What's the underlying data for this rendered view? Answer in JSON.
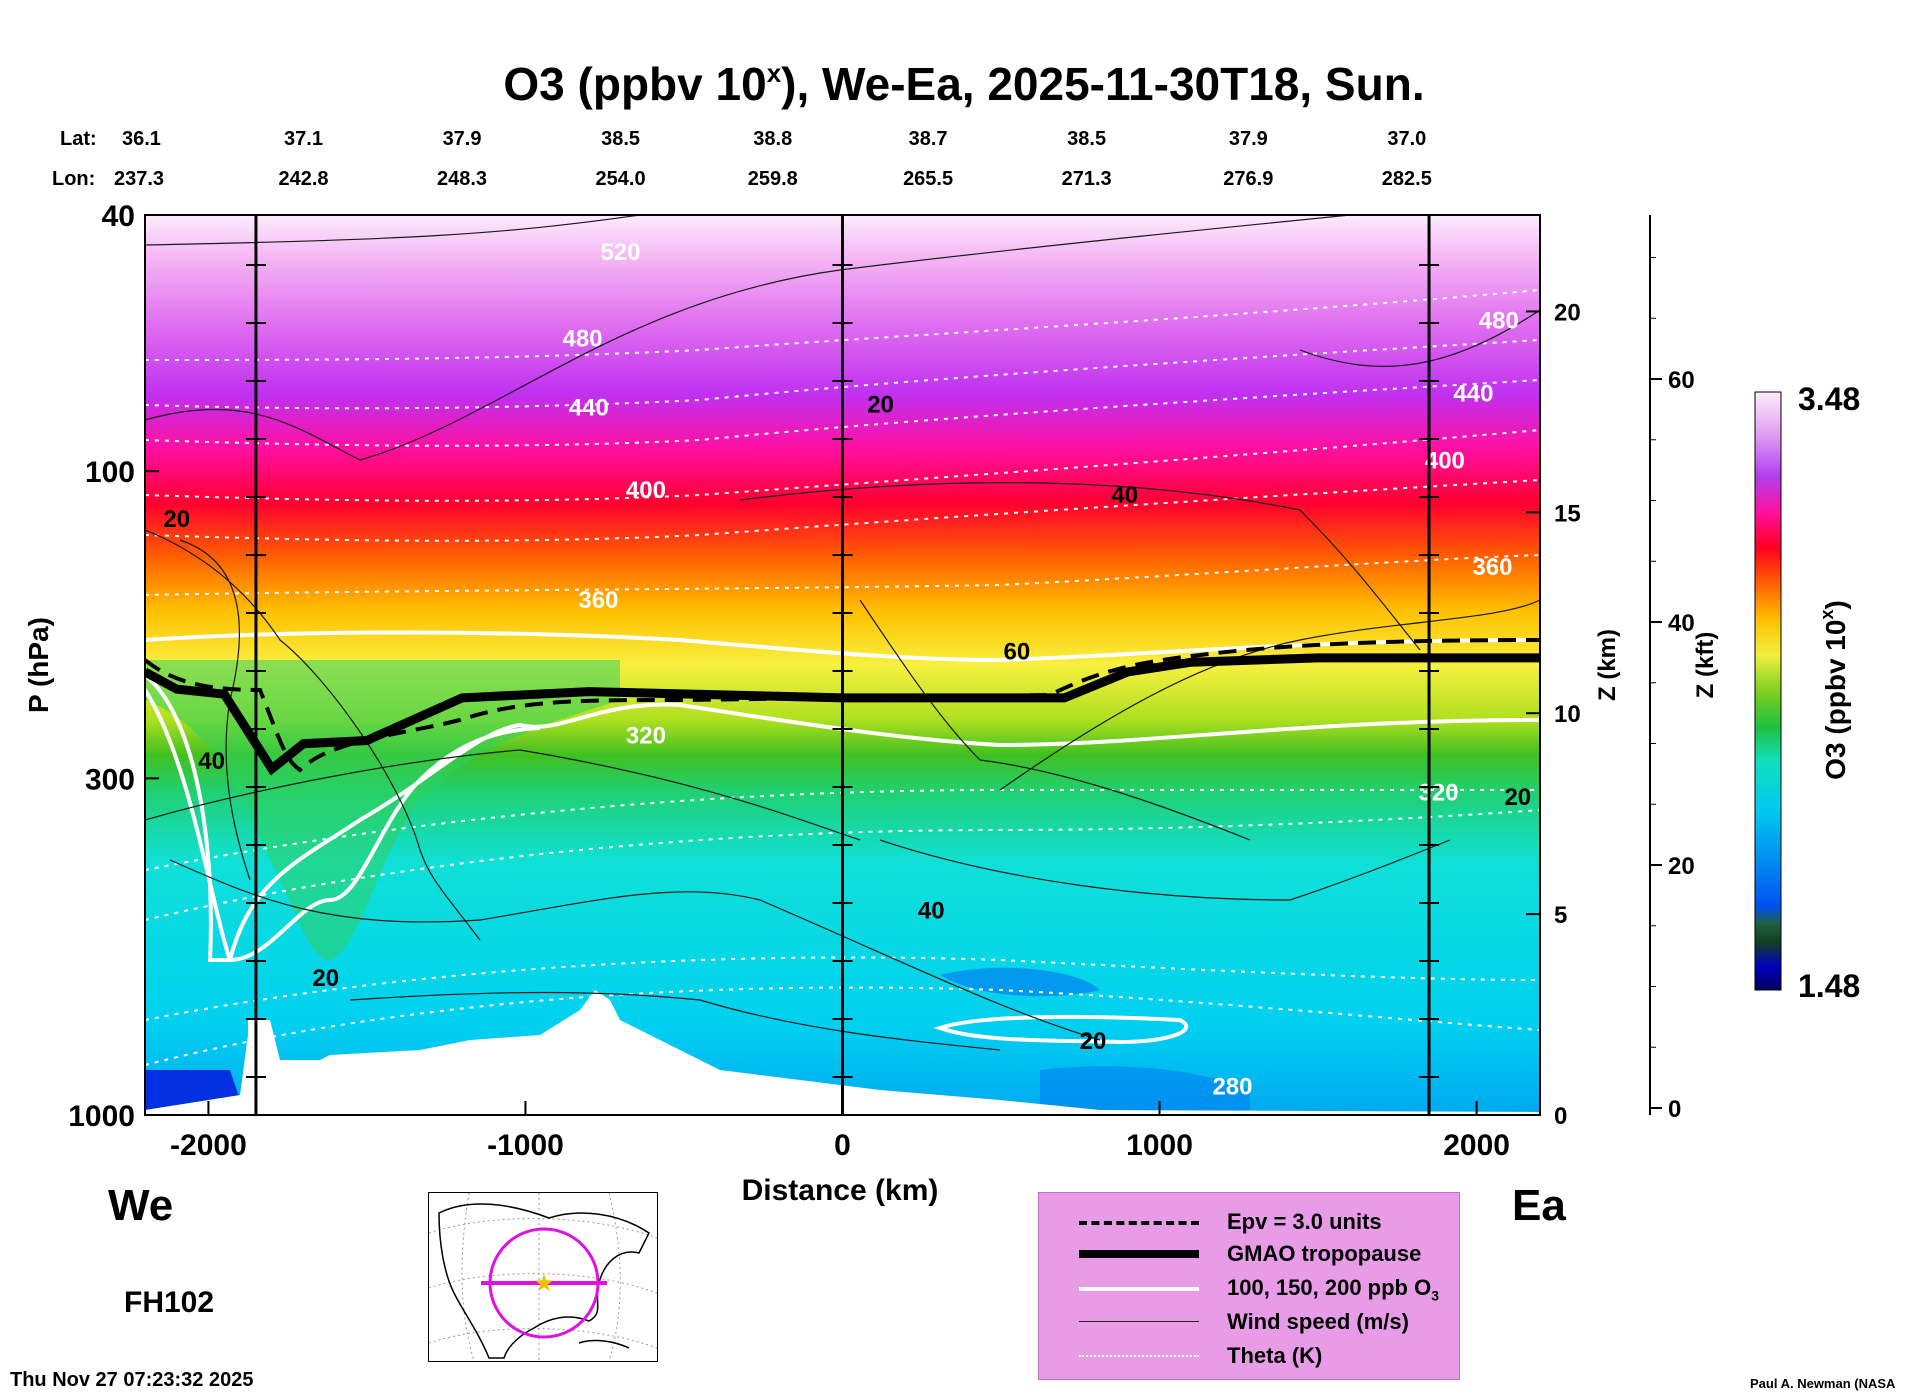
{
  "chart_data": {
    "type": "heatmap",
    "title": "O3 (ppbv 10",
    "title_superscript": "x",
    "title_suffix": "), We-Ea, 2025-11-30T18, Sun.",
    "xlabel": "Distance (km)",
    "ylabel": "P (hPa)",
    "xlim": [
      -2200,
      2200
    ],
    "ylim_hpa": [
      1000,
      40
    ],
    "x_ticks": [
      "-2000",
      "-1000",
      "0",
      "1000",
      "2000"
    ],
    "x_tick_values": [
      -2000,
      -1000,
      0,
      1000,
      2000
    ],
    "y_ticks": [
      "40",
      "100",
      "300",
      "1000"
    ],
    "y_tick_values": [
      40,
      100,
      300,
      1000
    ],
    "z_km_label": "Z (km)",
    "z_km_ticks": [
      "0",
      "5",
      "10",
      "15",
      "20"
    ],
    "z_km_values": [
      0,
      5,
      10,
      15,
      20
    ],
    "z_kft_label": "Z (kft)",
    "z_kft_ticks": [
      "0",
      "20",
      "40",
      "60"
    ],
    "z_kft_values": [
      0,
      20,
      40,
      60
    ],
    "lat_label": "Lat:",
    "lon_label": "Lon:",
    "stations": [
      {
        "lat": "36.1",
        "lon": "237.3",
        "x": -2200
      },
      {
        "lat": "37.1",
        "lon": "242.8",
        "x": -1700
      },
      {
        "lat": "37.9",
        "lon": "248.3",
        "x": -1200
      },
      {
        "lat": "38.5",
        "lon": "254.0",
        "x": -700
      },
      {
        "lat": "38.8",
        "lon": "259.8",
        "x": -220
      },
      {
        "lat": "38.7",
        "lon": "265.5",
        "x": 270
      },
      {
        "lat": "38.5",
        "lon": "271.3",
        "x": 770
      },
      {
        "lat": "37.9",
        "lon": "276.9",
        "x": 1280
      },
      {
        "lat": "37.0",
        "lon": "282.5",
        "x": 1780
      }
    ],
    "vertical_lines_x": [
      -1850,
      0,
      1850
    ],
    "colorbar": {
      "label": "O3 (ppbv 10",
      "label_sup": "x",
      "label_end": ")",
      "max": "3.48",
      "min": "1.48"
    },
    "tropopause_hpa": [
      {
        "x": -2200,
        "p": 205
      },
      {
        "x": -2100,
        "p": 218
      },
      {
        "x": -1950,
        "p": 222
      },
      {
        "x": -1800,
        "p": 290
      },
      {
        "x": -1700,
        "p": 265
      },
      {
        "x": -1500,
        "p": 262
      },
      {
        "x": -1200,
        "p": 225
      },
      {
        "x": -800,
        "p": 220
      },
      {
        "x": 0,
        "p": 225
      },
      {
        "x": 700,
        "p": 225
      },
      {
        "x": 900,
        "p": 205
      },
      {
        "x": 1100,
        "p": 198
      },
      {
        "x": 1500,
        "p": 195
      },
      {
        "x": 2200,
        "p": 195
      }
    ],
    "theta_labels": [
      {
        "text": "520",
        "x": -700,
        "p": 47
      },
      {
        "text": "480",
        "x": -820,
        "p": 64
      },
      {
        "text": "440",
        "x": -800,
        "p": 82
      },
      {
        "text": "400",
        "x": -620,
        "p": 110
      },
      {
        "text": "360",
        "x": -770,
        "p": 163
      },
      {
        "text": "320",
        "x": -620,
        "p": 265
      },
      {
        "text": "480",
        "x": 2070,
        "p": 60
      },
      {
        "text": "440",
        "x": 1990,
        "p": 78
      },
      {
        "text": "400",
        "x": 1900,
        "p": 99
      },
      {
        "text": "360",
        "x": 2050,
        "p": 145
      },
      {
        "text": "320",
        "x": 1880,
        "p": 325
      },
      {
        "text": "280",
        "x": 1230,
        "p": 930
      }
    ],
    "wind_labels": [
      {
        "text": "20",
        "x": -2100,
        "p": 122
      },
      {
        "text": "40",
        "x": -1990,
        "p": 290
      },
      {
        "text": "20",
        "x": 120,
        "p": 81
      },
      {
        "text": "40",
        "x": 890,
        "p": 112
      },
      {
        "text": "60",
        "x": 550,
        "p": 196
      },
      {
        "text": "40",
        "x": 280,
        "p": 495
      },
      {
        "text": "20",
        "x": -1630,
        "p": 630
      },
      {
        "text": "20",
        "x": 790,
        "p": 790
      },
      {
        "text": "20",
        "x": 2130,
        "p": 330
      }
    ]
  },
  "labels": {
    "west": "We",
    "east": "Ea",
    "forecast_hour": "FH102",
    "timestamp": "Thu Nov 27 07:23:32 2025",
    "credit": "Paul A. Newman (NASA"
  },
  "legend": [
    {
      "label": "Epv = 3.0 units",
      "style": "dashed"
    },
    {
      "label": "GMAO tropopause",
      "style": "thick"
    },
    {
      "label": "100, 150, 200 ppb O",
      "sub": "3",
      "style": "white"
    },
    {
      "label": "Wind speed (m/s)",
      "style": "thin"
    },
    {
      "label": "Theta (K)",
      "style": "dotted"
    }
  ]
}
